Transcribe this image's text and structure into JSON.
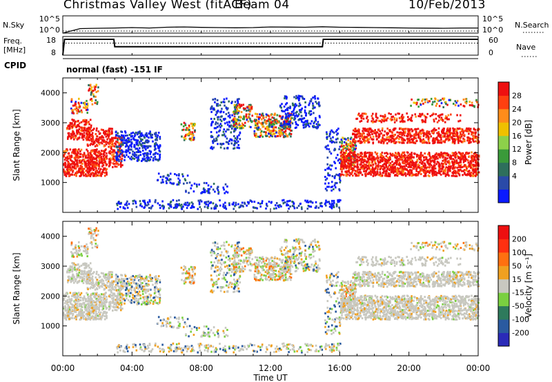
{
  "header": {
    "title": "Christmas Valley West (fitACF)",
    "beam": "Beam 04",
    "date": "10/Feb/2013"
  },
  "noise_panel": {
    "left_label": "N.Sky",
    "left_ticks": [
      "10^5",
      "10^0"
    ],
    "right_label": "N.Search",
    "right_ticks": [
      "10^5",
      "10^0"
    ]
  },
  "freq_panel": {
    "left_label_1": "Freq.",
    "left_label_2": "[MHz]",
    "left_ticks": [
      "18",
      "8"
    ],
    "right_label": "Nave",
    "right_ticks": [
      "60",
      "0"
    ]
  },
  "cpid": {
    "label": "CPID",
    "text": "normal (fast) -151 IF"
  },
  "colors": {
    "power": [
      "#0a1aff",
      "#2a4aa8",
      "#2e6f5c",
      "#3a9a3a",
      "#8dd04a",
      "#f0c000",
      "#ff8c1a",
      "#ff4010",
      "#ee1010"
    ],
    "velocity": [
      "#2a2ab8",
      "#2a5aa0",
      "#2e7a5c",
      "#7ad040",
      "#c8c8c0",
      "#f0a020",
      "#ff7010",
      "#ff3010",
      "#ee1010"
    ],
    "ground_scatter": "#c8c8c0"
  },
  "chart_data": [
    {
      "type": "line",
      "title": "",
      "ylabel": "N.Sky",
      "y2label": "N.Search",
      "scale": "log",
      "ylim": [
        1,
        100000
      ],
      "xlim": [
        0,
        24
      ],
      "series": [
        {
          "values": [
            1,
            20,
            25,
            30,
            40,
            30,
            50,
            60,
            45,
            40,
            35,
            40,
            60,
            55,
            50,
            70,
            50,
            45,
            40,
            35,
            30,
            28,
            25,
            30,
            30
          ]
        },
        {
          "values": [
            1,
            1,
            1,
            1,
            1,
            1,
            1,
            1,
            1,
            1,
            1,
            1,
            1,
            1,
            1,
            1,
            1,
            1,
            1,
            1,
            1,
            1,
            1,
            1,
            1
          ]
        }
      ]
    },
    {
      "type": "line",
      "ylabel": "Freq. [MHz]",
      "y2label": "Nave",
      "ylim": [
        8,
        18
      ],
      "y2lim": [
        0,
        60
      ],
      "xlim": [
        0,
        24
      ],
      "series": [
        {
          "x": [
            0,
            0.1,
            2.95,
            3.0,
            15.0,
            15.05,
            24
          ],
          "values": [
            8,
            16.5,
            16.5,
            12.5,
            12.5,
            16.5,
            16.5
          ]
        },
        {
          "x": [
            0,
            24
          ],
          "values": [
            14.5,
            14.5
          ]
        }
      ]
    },
    {
      "type": "heatmap",
      "title": "",
      "xlabel": "Time UT",
      "ylabel": "Slant Range [km]",
      "colorbar_label": "Power [dB]",
      "colorbar_ticks": [
        "28",
        "24",
        "20",
        "16",
        "12",
        "8",
        "4"
      ],
      "xlim": [
        0,
        24
      ],
      "ylim": [
        0,
        4500
      ],
      "x_ticks": [
        "00:00",
        "04:00",
        "08:00",
        "12:00",
        "16:00",
        "20:00",
        "00:00"
      ],
      "y_ticks": [
        "1000",
        "2000",
        "3000",
        "4000"
      ]
    },
    {
      "type": "heatmap",
      "title": "",
      "xlabel": "Time UT",
      "ylabel": "Slant Range [km]",
      "colorbar_label": "Velocity [m s⁻¹]",
      "colorbar_ticks": [
        "200",
        "100",
        "50",
        "15",
        "-15",
        "-50",
        "-100",
        "-200"
      ],
      "xlim": [
        0,
        24
      ],
      "ylim": [
        0,
        4500
      ],
      "x_ticks": [
        "00:00",
        "04:00",
        "08:00",
        "12:00",
        "16:00",
        "20:00",
        "00:00"
      ],
      "y_ticks": [
        "1000",
        "2000",
        "3000",
        "4000"
      ]
    }
  ]
}
